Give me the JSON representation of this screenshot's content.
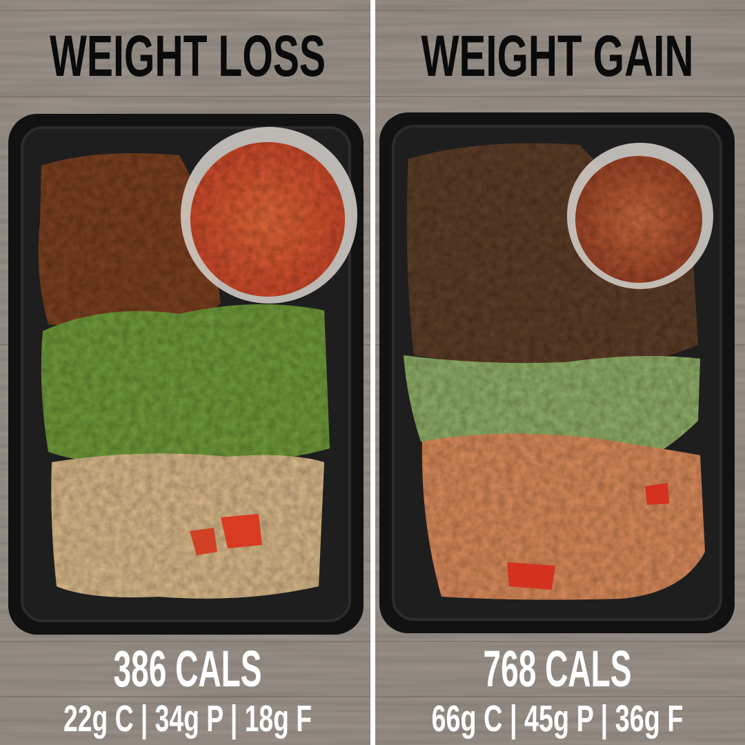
{
  "panels": [
    {
      "title": "WEIGHT LOSS",
      "calories": "386 CALS",
      "macros": "22g C | 34g P | 18g F"
    },
    {
      "title": "WEIGHT GAIN",
      "calories": "768 CALS",
      "macros": "66g C | 45g P | 36g F"
    }
  ]
}
